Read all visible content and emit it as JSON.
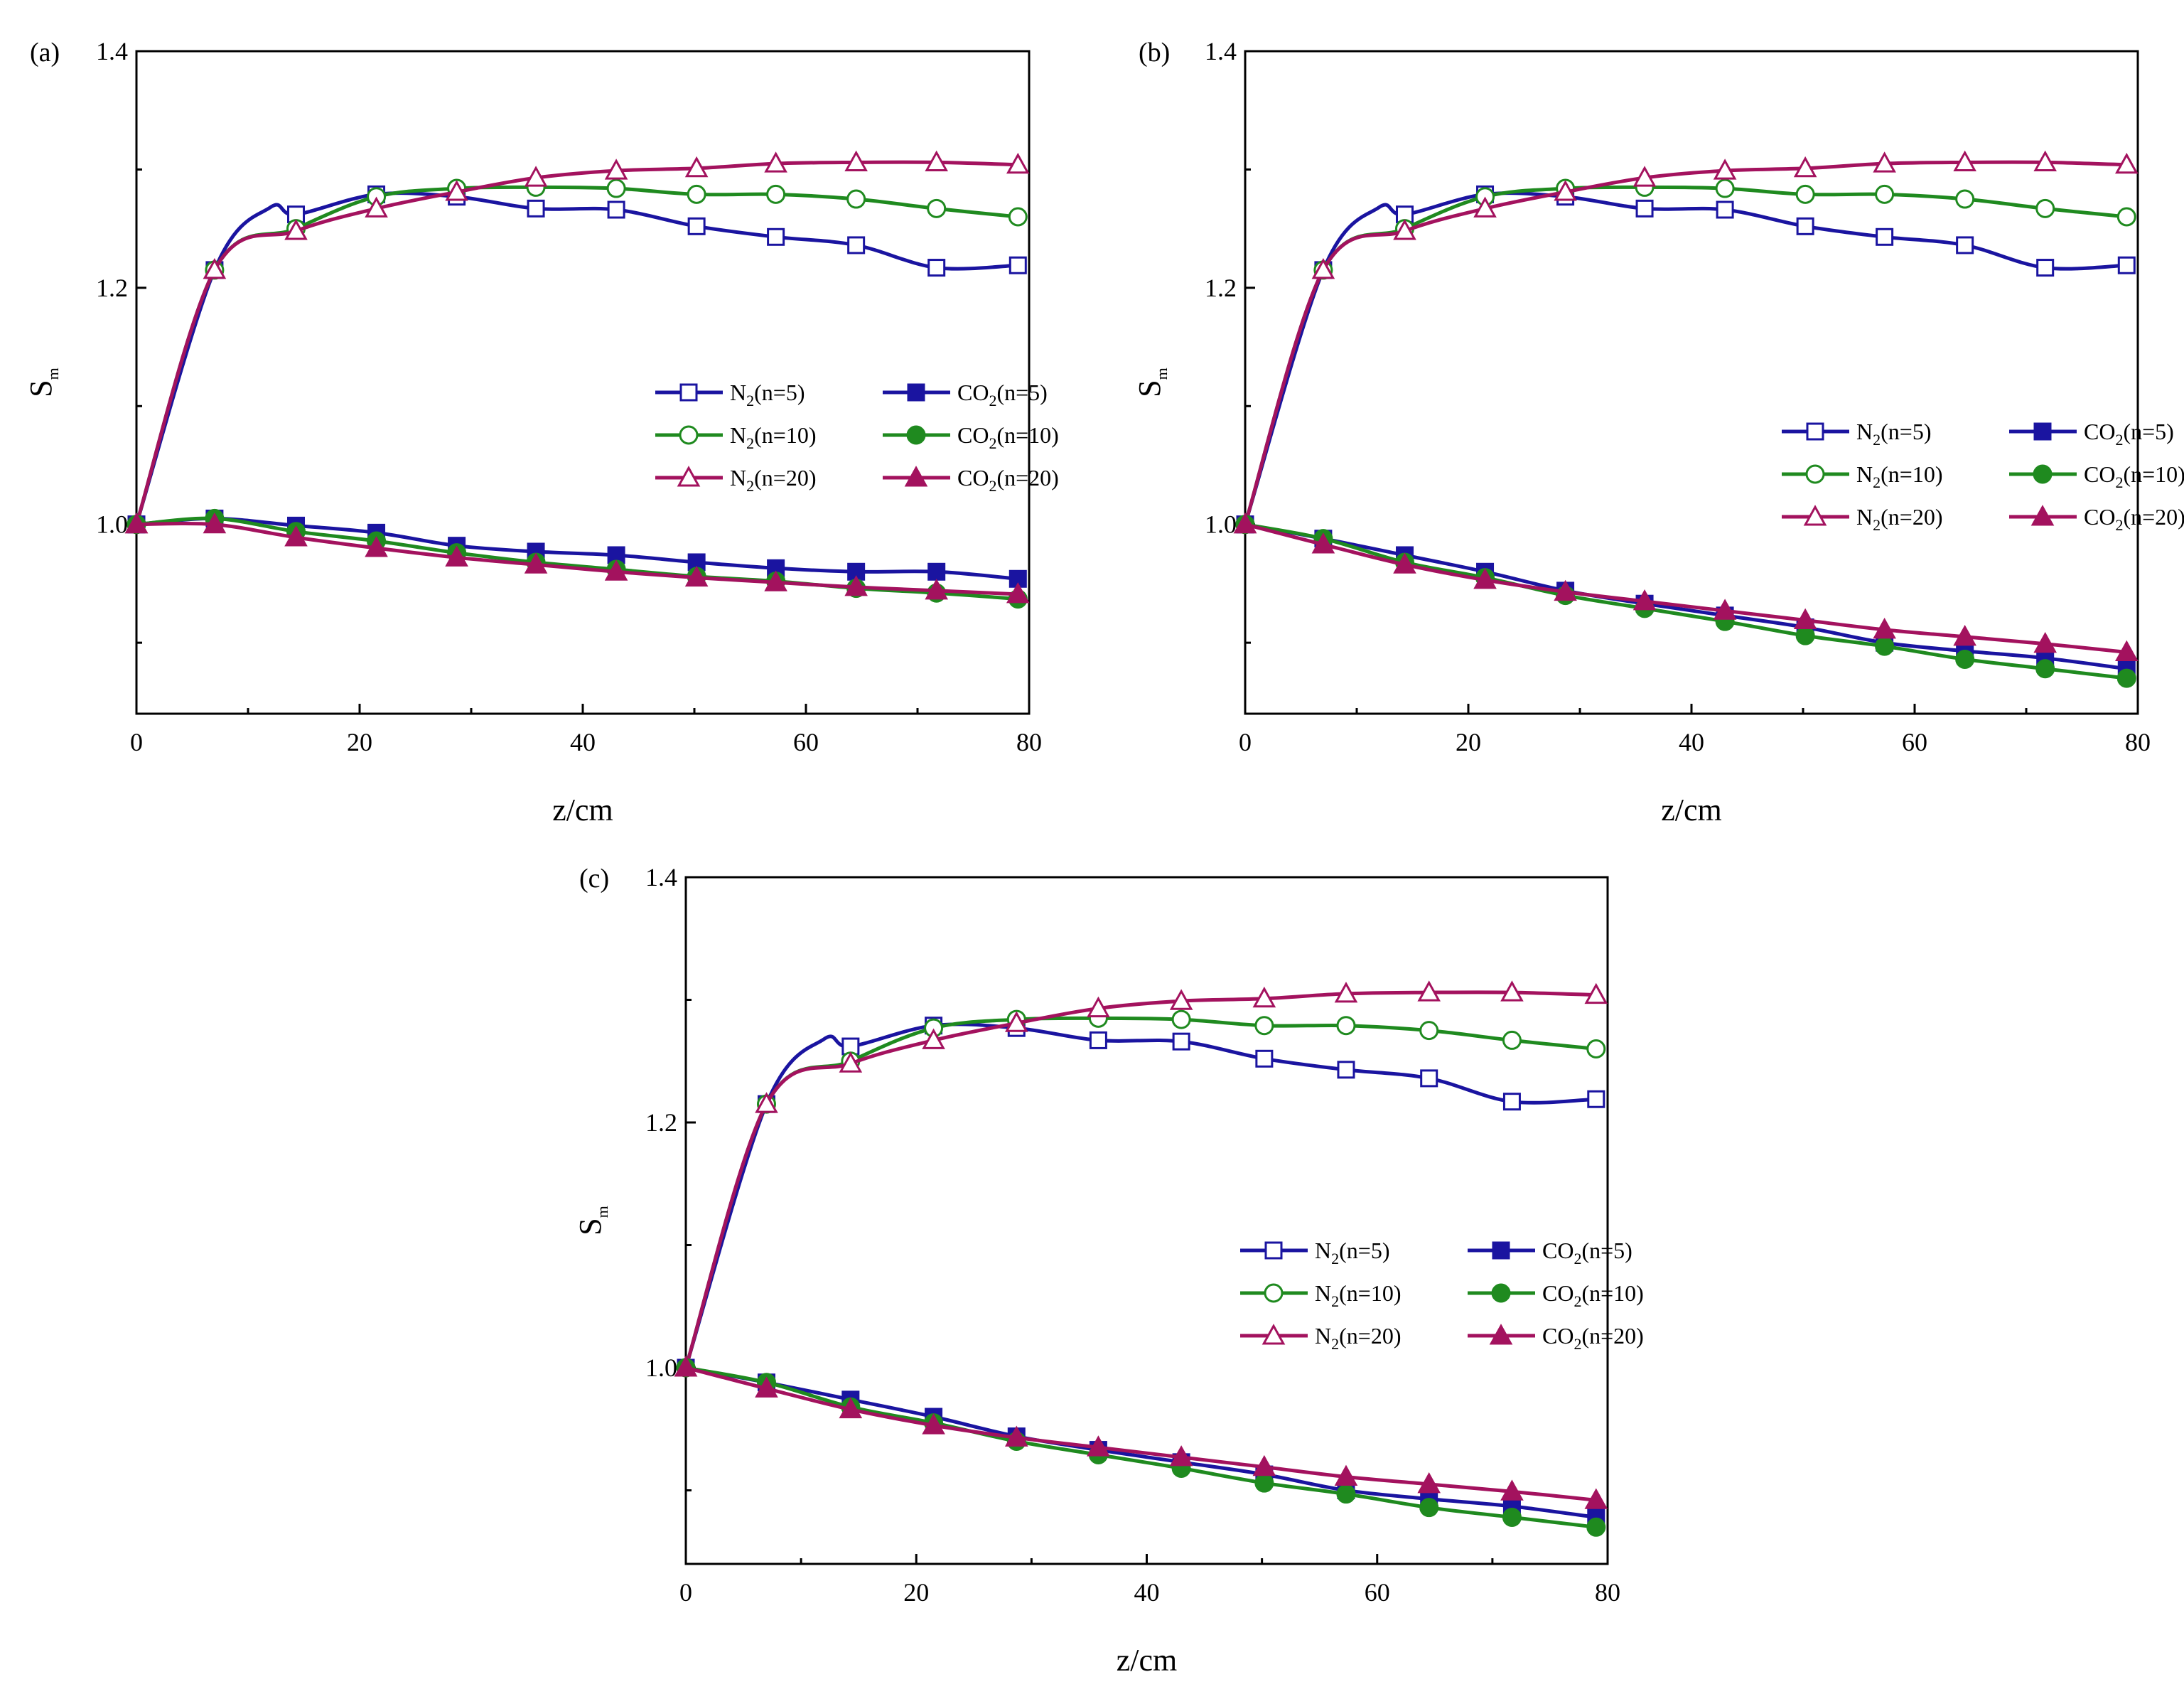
{
  "colors": {
    "n5": "#1a14a0",
    "n10": "#1f8a1f",
    "n20": "#a3125e"
  },
  "chart_data": [
    {
      "panel_label": "(a)",
      "type": "line",
      "xlabel": "z/cm",
      "ylabel_main": "S",
      "ylabel_sub": "m",
      "xlim": [
        0,
        80
      ],
      "ylim": [
        0.84,
        1.4
      ],
      "x_ticks": [
        "0",
        "20",
        "40",
        "60",
        "80"
      ],
      "y_ticks": [
        "1.0",
        "1.2",
        "1.4"
      ],
      "legend_position": "right",
      "series": [
        {
          "name": "N2(n=5)",
          "label_main": "N",
          "label_sub": "2",
          "label_rest": "(n=5)",
          "color_key": "n5",
          "marker": "open-square",
          "x": [
            0,
            7,
            12,
            14.3,
            21.5,
            28.7,
            35.8,
            43,
            50.2,
            57.3,
            64.5,
            71.7,
            79
          ],
          "y": [
            1.0,
            1.215,
            1.268,
            1.262,
            1.279,
            1.277,
            1.267,
            1.266,
            1.252,
            1.243,
            1.236,
            1.217,
            1.219
          ]
        },
        {
          "name": "N2(n=10)",
          "label_main": "N",
          "label_sub": "2",
          "label_rest": "(n=10)",
          "color_key": "n10",
          "marker": "open-circle",
          "x": [
            0,
            7,
            14.3,
            21.5,
            28.7,
            35.8,
            43,
            50.2,
            57.3,
            64.5,
            71.7,
            79
          ],
          "y": [
            1.0,
            1.215,
            1.25,
            1.277,
            1.284,
            1.285,
            1.284,
            1.279,
            1.279,
            1.275,
            1.267,
            1.26
          ]
        },
        {
          "name": "N2(n=20)",
          "label_main": "N",
          "label_sub": "2",
          "label_rest": "(n=20)",
          "color_key": "n20",
          "marker": "open-triangle",
          "x": [
            0,
            7,
            14.3,
            21.5,
            28.7,
            35.8,
            43,
            50.2,
            57.3,
            64.5,
            71.7,
            79
          ],
          "y": [
            1.0,
            1.215,
            1.248,
            1.267,
            1.281,
            1.293,
            1.299,
            1.301,
            1.305,
            1.306,
            1.306,
            1.304
          ]
        },
        {
          "name": "CO2(n=5)",
          "label_main": "CO",
          "label_sub": "2",
          "label_rest": "(n=5)",
          "color_key": "n5",
          "marker": "filled-square",
          "x": [
            0,
            7,
            14.3,
            21.5,
            28.7,
            35.8,
            43,
            50.2,
            57.3,
            64.5,
            71.7,
            79
          ],
          "y": [
            1.0,
            1.005,
            0.999,
            0.993,
            0.982,
            0.977,
            0.974,
            0.968,
            0.963,
            0.96,
            0.96,
            0.954
          ]
        },
        {
          "name": "CO2(n=10)",
          "label_main": "CO",
          "label_sub": "2",
          "label_rest": "(n=10)",
          "color_key": "n10",
          "marker": "filled-circle",
          "x": [
            0,
            7,
            14.3,
            21.5,
            28.7,
            35.8,
            43,
            50.2,
            57.3,
            64.5,
            71.7,
            79
          ],
          "y": [
            1.0,
            1.005,
            0.994,
            0.986,
            0.976,
            0.968,
            0.962,
            0.956,
            0.952,
            0.946,
            0.942,
            0.937
          ]
        },
        {
          "name": "CO2(n=20)",
          "label_main": "CO",
          "label_sub": "2",
          "label_rest": "(n=20)",
          "color_key": "n20",
          "marker": "filled-triangle",
          "x": [
            0,
            7,
            14.3,
            21.5,
            28.7,
            35.8,
            43,
            50.2,
            57.3,
            64.5,
            71.7,
            79
          ],
          "y": [
            1.0,
            1.0,
            0.989,
            0.98,
            0.972,
            0.966,
            0.96,
            0.955,
            0.951,
            0.947,
            0.944,
            0.941
          ]
        }
      ]
    },
    {
      "panel_label": "(b)",
      "type": "line",
      "xlabel": "z/cm",
      "ylabel_main": "S",
      "ylabel_sub": "m",
      "xlim": [
        0,
        80
      ],
      "ylim": [
        0.84,
        1.4
      ],
      "x_ticks": [
        "0",
        "20",
        "40",
        "60",
        "80"
      ],
      "y_ticks": [
        "1.0",
        "1.2",
        "1.4"
      ],
      "legend_position": "right",
      "series": [
        {
          "name": "N2(n=5)",
          "label_main": "N",
          "label_sub": "2",
          "label_rest": "(n=5)",
          "color_key": "n5",
          "marker": "open-square",
          "x": [
            0,
            7,
            12,
            14.3,
            21.5,
            28.7,
            35.8,
            43,
            50.2,
            57.3,
            64.5,
            71.7,
            79
          ],
          "y": [
            1.0,
            1.215,
            1.268,
            1.262,
            1.279,
            1.277,
            1.267,
            1.266,
            1.252,
            1.243,
            1.236,
            1.217,
            1.219
          ]
        },
        {
          "name": "N2(n=10)",
          "label_main": "N",
          "label_sub": "2",
          "label_rest": "(n=10)",
          "color_key": "n10",
          "marker": "open-circle",
          "x": [
            0,
            7,
            14.3,
            21.5,
            28.7,
            35.8,
            43,
            50.2,
            57.3,
            64.5,
            71.7,
            79
          ],
          "y": [
            1.0,
            1.215,
            1.25,
            1.277,
            1.284,
            1.285,
            1.284,
            1.279,
            1.279,
            1.275,
            1.267,
            1.26
          ]
        },
        {
          "name": "N2(n=20)",
          "label_main": "N",
          "label_sub": "2",
          "label_rest": "(n=20)",
          "color_key": "n20",
          "marker": "open-triangle",
          "x": [
            0,
            7,
            14.3,
            21.5,
            28.7,
            35.8,
            43,
            50.2,
            57.3,
            64.5,
            71.7,
            79
          ],
          "y": [
            1.0,
            1.215,
            1.248,
            1.267,
            1.281,
            1.293,
            1.299,
            1.301,
            1.305,
            1.306,
            1.306,
            1.304
          ]
        },
        {
          "name": "CO2(n=5)",
          "label_main": "CO",
          "label_sub": "2",
          "label_rest": "(n=5)",
          "color_key": "n5",
          "marker": "filled-square",
          "x": [
            0,
            7,
            14.3,
            21.5,
            28.7,
            35.8,
            43,
            50.2,
            57.3,
            64.5,
            71.7,
            79
          ],
          "y": [
            1.0,
            0.988,
            0.974,
            0.96,
            0.944,
            0.933,
            0.923,
            0.913,
            0.9,
            0.893,
            0.887,
            0.878
          ]
        },
        {
          "name": "CO2(n=10)",
          "label_main": "CO",
          "label_sub": "2",
          "label_rest": "(n=10)",
          "color_key": "n10",
          "marker": "filled-circle",
          "x": [
            0,
            7,
            14.3,
            21.5,
            28.7,
            35.8,
            43,
            50.2,
            57.3,
            64.5,
            71.7,
            79
          ],
          "y": [
            1.0,
            0.988,
            0.968,
            0.955,
            0.94,
            0.929,
            0.918,
            0.906,
            0.897,
            0.886,
            0.878,
            0.87
          ]
        },
        {
          "name": "CO2(n=20)",
          "label_main": "CO",
          "label_sub": "2",
          "label_rest": "(n=20)",
          "color_key": "n20",
          "marker": "filled-triangle",
          "x": [
            0,
            7,
            14.3,
            21.5,
            28.7,
            35.8,
            43,
            50.2,
            57.3,
            64.5,
            71.7,
            79
          ],
          "y": [
            1.0,
            0.983,
            0.966,
            0.953,
            0.943,
            0.935,
            0.927,
            0.919,
            0.911,
            0.905,
            0.899,
            0.892
          ]
        }
      ]
    },
    {
      "panel_label": "(c)",
      "type": "line",
      "xlabel": "z/cm",
      "ylabel_main": "S",
      "ylabel_sub": "m",
      "xlim": [
        0,
        80
      ],
      "ylim": [
        0.84,
        1.4
      ],
      "x_ticks": [
        "0",
        "20",
        "40",
        "60",
        "80"
      ],
      "y_ticks": [
        "1.0",
        "1.2",
        "1.4"
      ],
      "legend_position": "right",
      "series": [
        {
          "name": "N2(n=5)",
          "label_main": "N",
          "label_sub": "2",
          "label_rest": "(n=5)",
          "color_key": "n5",
          "marker": "open-square",
          "x": [
            0,
            7,
            12,
            14.3,
            21.5,
            28.7,
            35.8,
            43,
            50.2,
            57.3,
            64.5,
            71.7,
            79
          ],
          "y": [
            1.0,
            1.215,
            1.268,
            1.262,
            1.279,
            1.277,
            1.267,
            1.266,
            1.252,
            1.243,
            1.236,
            1.217,
            1.219
          ]
        },
        {
          "name": "N2(n=10)",
          "label_main": "N",
          "label_sub": "2",
          "label_rest": "(n=10)",
          "color_key": "n10",
          "marker": "open-circle",
          "x": [
            0,
            7,
            14.3,
            21.5,
            28.7,
            35.8,
            43,
            50.2,
            57.3,
            64.5,
            71.7,
            79
          ],
          "y": [
            1.0,
            1.215,
            1.25,
            1.277,
            1.284,
            1.285,
            1.284,
            1.279,
            1.279,
            1.275,
            1.267,
            1.26
          ]
        },
        {
          "name": "N2(n=20)",
          "label_main": "N",
          "label_sub": "2",
          "label_rest": "(n=20)",
          "color_key": "n20",
          "marker": "open-triangle",
          "x": [
            0,
            7,
            14.3,
            21.5,
            28.7,
            35.8,
            43,
            50.2,
            57.3,
            64.5,
            71.7,
            79
          ],
          "y": [
            1.0,
            1.215,
            1.248,
            1.267,
            1.281,
            1.293,
            1.299,
            1.301,
            1.305,
            1.306,
            1.306,
            1.304
          ]
        },
        {
          "name": "CO2(n=5)",
          "label_main": "CO",
          "label_sub": "2",
          "label_rest": "(n=5)",
          "color_key": "n5",
          "marker": "filled-square",
          "x": [
            0,
            7,
            14.3,
            21.5,
            28.7,
            35.8,
            43,
            50.2,
            57.3,
            64.5,
            71.7,
            79
          ],
          "y": [
            1.0,
            0.988,
            0.974,
            0.96,
            0.944,
            0.933,
            0.923,
            0.913,
            0.9,
            0.893,
            0.887,
            0.878
          ]
        },
        {
          "name": "CO2(n=10)",
          "label_main": "CO",
          "label_sub": "2",
          "label_rest": "(n=10)",
          "color_key": "n10",
          "marker": "filled-circle",
          "x": [
            0,
            7,
            14.3,
            21.5,
            28.7,
            35.8,
            43,
            50.2,
            57.3,
            64.5,
            71.7,
            79
          ],
          "y": [
            1.0,
            0.988,
            0.968,
            0.955,
            0.94,
            0.929,
            0.918,
            0.906,
            0.897,
            0.886,
            0.878,
            0.87
          ]
        },
        {
          "name": "CO2(n=20)",
          "label_main": "CO",
          "label_sub": "2",
          "label_rest": "(n=20)",
          "color_key": "n20",
          "marker": "filled-triangle",
          "x": [
            0,
            7,
            14.3,
            21.5,
            28.7,
            35.8,
            43,
            50.2,
            57.3,
            64.5,
            71.7,
            79
          ],
          "y": [
            1.0,
            0.983,
            0.966,
            0.953,
            0.943,
            0.935,
            0.927,
            0.919,
            0.911,
            0.905,
            0.899,
            0.892
          ]
        }
      ]
    }
  ]
}
